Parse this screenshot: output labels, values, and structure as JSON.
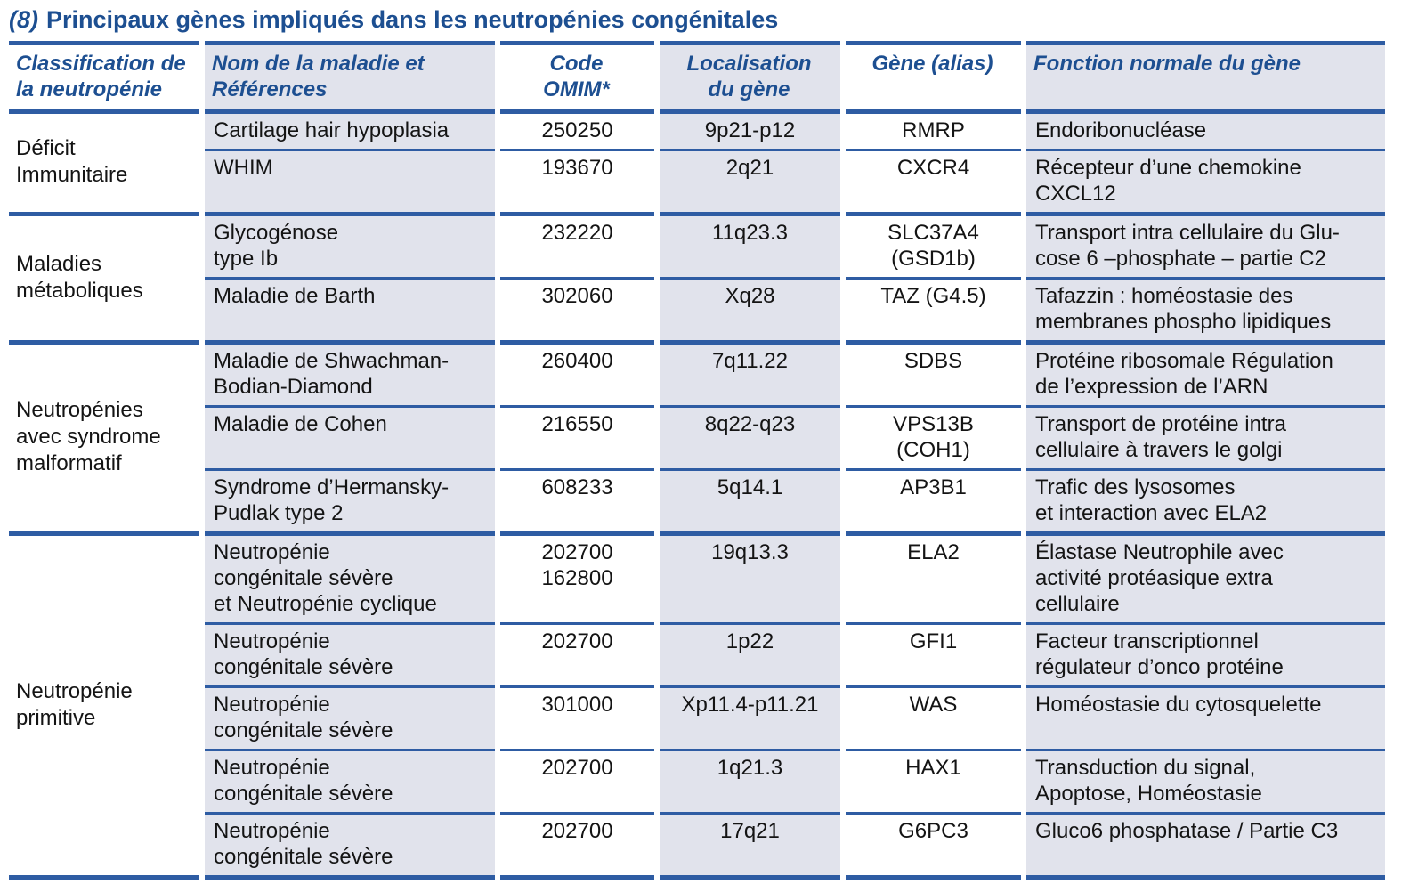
{
  "title": {
    "prefix": "(8)",
    "text": "Principaux gènes impliqués dans les neutropénies congénitales"
  },
  "colors": {
    "border_blue": "#2e5ca3",
    "heading_blue": "#1d4f91",
    "shaded_column": "#e1e3ec",
    "body_text": "#141414",
    "background": "#ffffff"
  },
  "table": {
    "columns": [
      {
        "key": "classification",
        "label": "Classification de\nla neutropénie",
        "align": "left",
        "shaded": false
      },
      {
        "key": "disease",
        "label": "Nom de la maladie et\nRéférences",
        "align": "left",
        "shaded": true
      },
      {
        "key": "omim",
        "label": "Code\nOMIM*",
        "align": "center",
        "shaded": false
      },
      {
        "key": "locus",
        "label": "Localisation\ndu gène",
        "align": "center",
        "shaded": true
      },
      {
        "key": "gene",
        "label": "Gène (alias)",
        "align": "center",
        "shaded": false
      },
      {
        "key": "function",
        "label": "Fonction normale du gène",
        "align": "left",
        "shaded": true
      }
    ],
    "groups": [
      {
        "classification": "Déficit\nImmunitaire",
        "rows": [
          {
            "disease": "Cartilage hair hypoplasia",
            "omim": "250250",
            "locus": "9p21-p12",
            "gene": "RMRP",
            "function": "Endoribonucléase"
          },
          {
            "disease": "WHIM",
            "omim": "193670",
            "locus": "2q21",
            "gene": "CXCR4",
            "function": "Récepteur d’une chemokine\nCXCL12"
          }
        ]
      },
      {
        "classification": "Maladies\nmétaboliques",
        "rows": [
          {
            "disease": "Glycogénose\ntype Ib",
            "omim": "232220",
            "locus": "11q23.3",
            "gene": "SLC37A4\n(GSD1b)",
            "function": "Transport intra cellulaire du Glu-\ncose 6 –phosphate – partie C2"
          },
          {
            "disease": "Maladie de Barth",
            "omim": "302060",
            "locus": "Xq28",
            "gene": "TAZ (G4.5)",
            "function": "Tafazzin : homéostasie des\nmembranes phospho lipidiques"
          }
        ]
      },
      {
        "classification": "Neutropénies\navec syndrome\nmalformatif",
        "rows": [
          {
            "disease": "Maladie de Shwachman-\nBodian-Diamond",
            "omim": "260400",
            "locus": "7q11.22",
            "gene": "SDBS",
            "function": "Protéine ribosomale Régulation\nde l’expression de l’ARN"
          },
          {
            "disease": "Maladie de Cohen",
            "omim": "216550",
            "locus": "8q22-q23",
            "gene": "VPS13B (COH1)",
            "function": "Transport de protéine intra\ncellulaire à travers le golgi"
          },
          {
            "disease": "Syndrome d’Hermansky-\nPudlak type 2",
            "omim": "608233",
            "locus": "5q14.1",
            "gene": "AP3B1",
            "function": "Trafic des lysosomes\net interaction avec ELA2"
          }
        ]
      },
      {
        "classification": "Neutropénie\nprimitive",
        "rows": [
          {
            "disease": "Neutropénie\ncongénitale sévère\net Neutropénie cyclique",
            "omim": "202700\n162800",
            "locus": "19q13.3",
            "gene": "ELA2",
            "function": "Élastase Neutrophile avec\nactivité protéasique extra\ncellulaire"
          },
          {
            "disease": "Neutropénie\ncongénitale sévère",
            "omim": "202700",
            "locus": "1p22",
            "gene": "GFI1",
            "function": "Facteur transcriptionnel\nrégulateur d’onco protéine"
          },
          {
            "disease": "Neutropénie\ncongénitale sévère",
            "omim": "301000",
            "locus": "Xp11.4-p11.21",
            "gene": "WAS",
            "function": "Homéostasie du cytosquelette"
          },
          {
            "disease": "Neutropénie\ncongénitale sévère",
            "omim": "202700",
            "locus": "1q21.3",
            "gene": "HAX1",
            "function": "Transduction du signal,\nApoptose, Homéostasie"
          },
          {
            "disease": "Neutropénie\ncongénitale sévère",
            "omim": "202700",
            "locus": "17q21",
            "gene": "G6PC3",
            "function": "Gluco6 phosphatase / Partie C3"
          }
        ]
      }
    ]
  }
}
